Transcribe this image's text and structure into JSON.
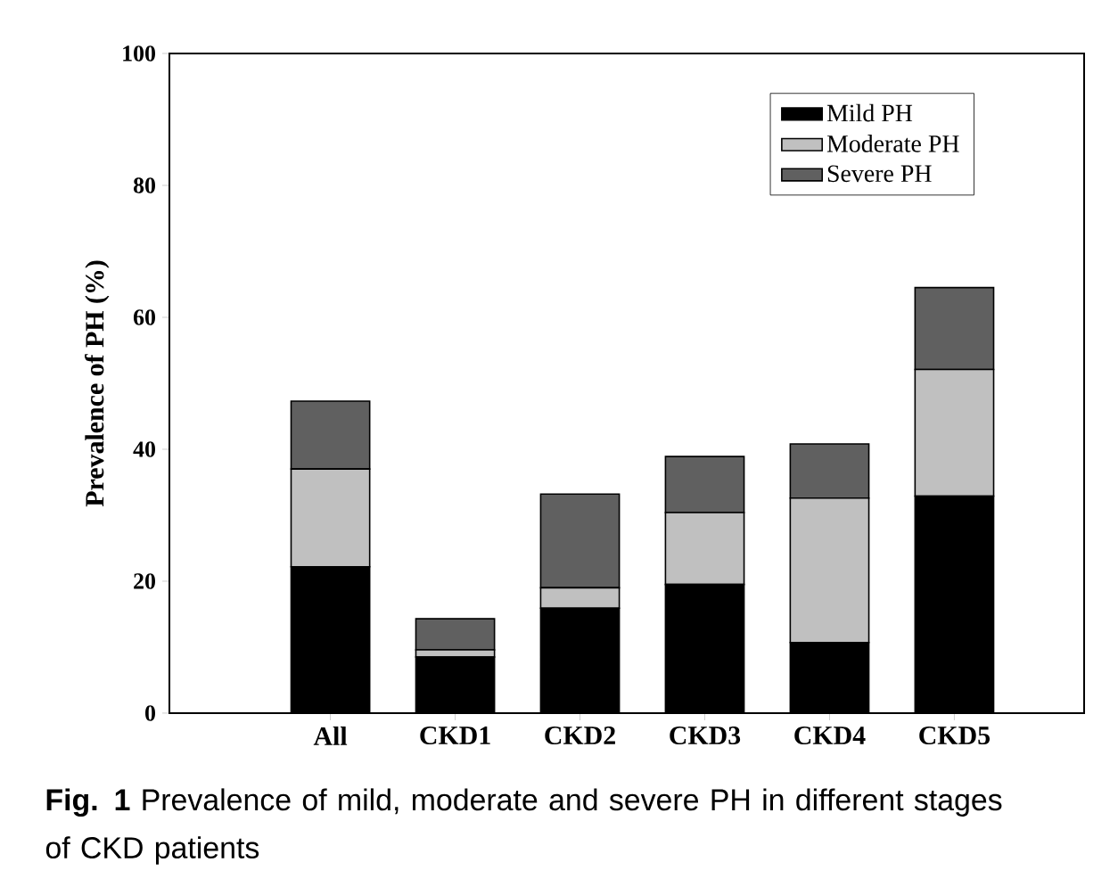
{
  "chart_data": {
    "type": "bar",
    "stacked": true,
    "ylabel": "Prevalence of PH (%)",
    "categories": [
      "All",
      "CKD1",
      "CKD2",
      "CKD3",
      "CKD4",
      "CKD5"
    ],
    "series": [
      {
        "name": "Mild PH",
        "color": "#000000",
        "values": [
          22.2,
          8.5,
          15.9,
          19.5,
          10.7,
          32.9
        ]
      },
      {
        "name": "Moderate PH",
        "color": "#c0c0c0",
        "values": [
          14.8,
          1.1,
          3.1,
          10.9,
          21.9,
          19.2
        ]
      },
      {
        "name": "Severe PH",
        "color": "#606060",
        "values": [
          10.3,
          4.7,
          14.2,
          8.5,
          8.2,
          12.4
        ]
      }
    ],
    "ylim": [
      0,
      100
    ],
    "yticks": [
      0,
      20,
      40,
      60,
      80,
      100
    ],
    "legend": "top right",
    "grid": false,
    "annotations": [
      "**Fig. 1** Prevalence of mild, moderate and severe PH in different stages of CKD patients"
    ]
  }
}
